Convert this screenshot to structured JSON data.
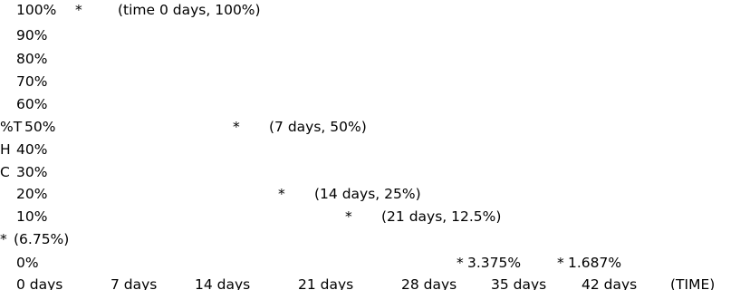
{
  "chart_data": {
    "type": "scatter",
    "ylabel": [
      "%T",
      "H",
      "C"
    ],
    "xlabel": "(TIME)",
    "x_ticks": [
      "0 days",
      "7 days",
      "14 days",
      "21 days",
      "28 days",
      "35 days",
      "42 days"
    ],
    "y_ticks": [
      "100%",
      "90%",
      "80%",
      "70%",
      "60%",
      "50%",
      "40%",
      "30%",
      "20%",
      "10%",
      "0%"
    ],
    "ylim": [
      0,
      100
    ],
    "marker": "*",
    "points": [
      {
        "x": 0,
        "y": 100,
        "label": "(time 0 days, 100%)"
      },
      {
        "x": 7,
        "y": 50,
        "label": "(7 days, 50%)"
      },
      {
        "x": 14,
        "y": 25,
        "label": "(14 days, 25%)"
      },
      {
        "x": 21,
        "y": 12.5,
        "label": "(21 days, 12.5%)"
      },
      {
        "x": 28,
        "y": 6.75,
        "label": "(6.75%)"
      },
      {
        "x": 35,
        "y": 3.375,
        "label": "3.375%"
      },
      {
        "x": 42,
        "y": 1.687,
        "label": "1.687%"
      }
    ]
  }
}
